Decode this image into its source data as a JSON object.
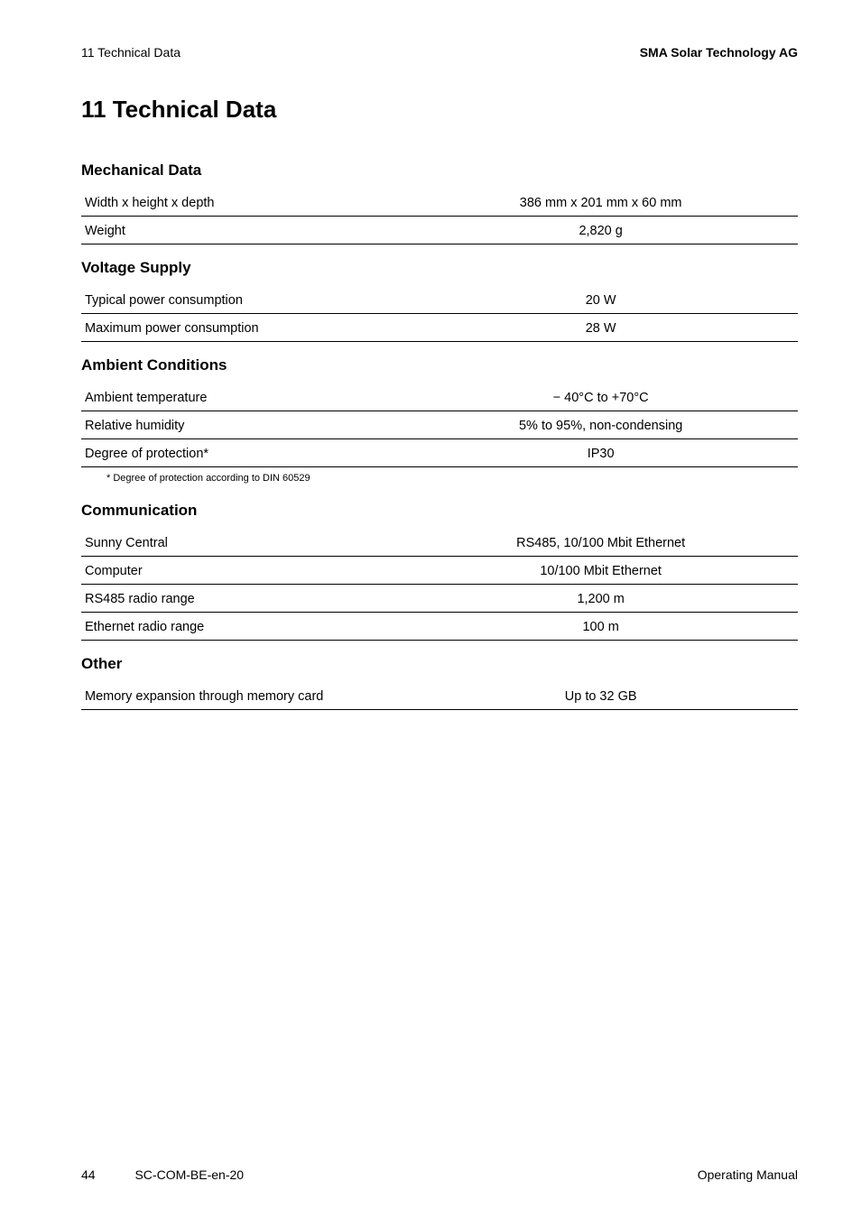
{
  "header": {
    "left": "11  Technical Data",
    "right": "SMA Solar Technology AG"
  },
  "title": "11 Technical Data",
  "sections": [
    {
      "heading": "Mechanical Data",
      "rows": [
        {
          "label": "Width x height x depth",
          "value": "386 mm x 201 mm x 60 mm"
        },
        {
          "label": "Weight",
          "value": "2,820 g"
        }
      ]
    },
    {
      "heading": "Voltage Supply",
      "rows": [
        {
          "label": "Typical power consumption",
          "value": "20 W"
        },
        {
          "label": "Maximum power consumption",
          "value": "28 W"
        }
      ]
    },
    {
      "heading": "Ambient Conditions",
      "rows": [
        {
          "label": "Ambient temperature",
          "value": "− 40°C to +70°C"
        },
        {
          "label": "Relative humidity",
          "value": "5% to 95%, non-condensing"
        },
        {
          "label": "Degree of protection*",
          "value": "IP30"
        }
      ],
      "footnote": "* Degree of protection according to DIN 60529"
    },
    {
      "heading": "Communication",
      "rows": [
        {
          "label": "Sunny Central",
          "value": "RS485, 10/100 Mbit Ethernet"
        },
        {
          "label": "Computer",
          "value": "10/100 Mbit Ethernet"
        },
        {
          "label": "RS485 radio range",
          "value": "1,200 m"
        },
        {
          "label": "Ethernet radio range",
          "value": "100 m"
        }
      ]
    },
    {
      "heading": "Other",
      "rows": [
        {
          "label": "Memory expansion through memory card",
          "value": "Up to 32 GB"
        }
      ]
    }
  ],
  "footer": {
    "page": "44",
    "doc": "SC-COM-BE-en-20",
    "right": "Operating Manual"
  },
  "style": {
    "page_bg": "#ffffff",
    "text_color": "#000000",
    "rule_color": "#000000",
    "h1_fontsize": 26,
    "h2_fontsize": 17,
    "body_fontsize": 14.5,
    "footnote_fontsize": 11,
    "header_fontsize": 14,
    "footer_fontsize": 14,
    "label_col_width_pct": 45,
    "value_col_width_pct": 55
  }
}
